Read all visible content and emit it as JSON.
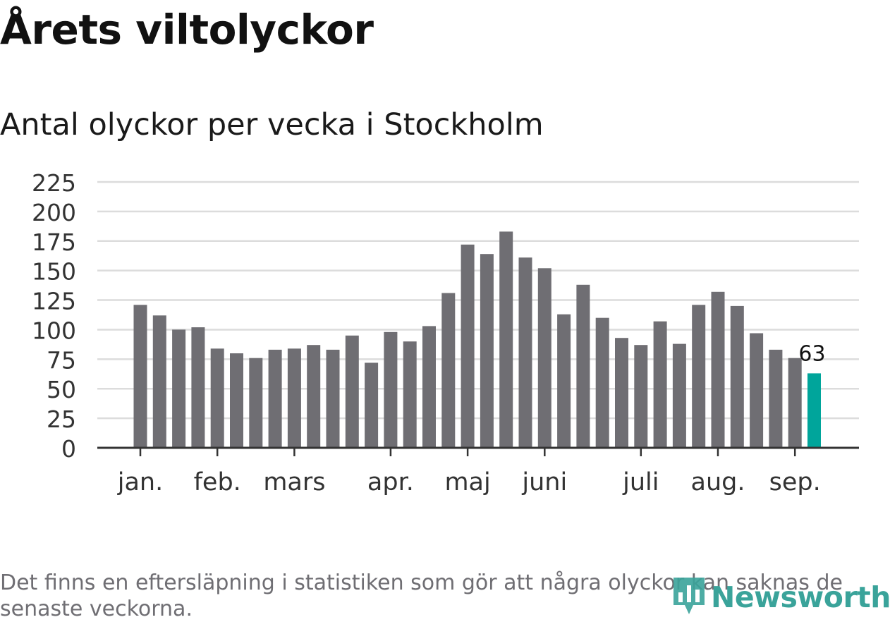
{
  "title": "Årets viltolyckor",
  "subtitle": "Antal olyckor per vecka i Stockholm",
  "footnote": "Det finns en eftersläpning i statistiken som gör att några olyckor kan saknas de senaste veckorna.",
  "logo": {
    "text": "Newsworthy",
    "icon": "bar-chart-pin-icon"
  },
  "colors": {
    "bar": "#6f6e73",
    "highlight": "#00a59b",
    "grid": "#dcdcdc",
    "axis": "#333333",
    "logo": "#3aa39a"
  },
  "chart_data": {
    "type": "bar",
    "title": "",
    "xlabel": "",
    "ylabel": "",
    "ylim": [
      0,
      225
    ],
    "yticks": [
      0,
      25,
      50,
      75,
      100,
      125,
      150,
      175,
      200,
      225
    ],
    "grid": true,
    "values": [
      121,
      112,
      100,
      102,
      84,
      80,
      76,
      83,
      84,
      87,
      83,
      95,
      72,
      98,
      90,
      103,
      131,
      172,
      164,
      183,
      161,
      152,
      113,
      138,
      110,
      93,
      87,
      107,
      88,
      121,
      132,
      120,
      97,
      83,
      76,
      63
    ],
    "highlight_index": 35,
    "highlight_label": "63",
    "months": [
      {
        "label": "jan.",
        "bar_index": 0
      },
      {
        "label": "feb.",
        "bar_index": 4
      },
      {
        "label": "mars",
        "bar_index": 8
      },
      {
        "label": "apr.",
        "bar_index": 13
      },
      {
        "label": "maj",
        "bar_index": 17
      },
      {
        "label": "juni",
        "bar_index": 21
      },
      {
        "label": "juli",
        "bar_index": 26
      },
      {
        "label": "aug.",
        "bar_index": 30
      },
      {
        "label": "sep.",
        "bar_index": 34
      }
    ]
  }
}
